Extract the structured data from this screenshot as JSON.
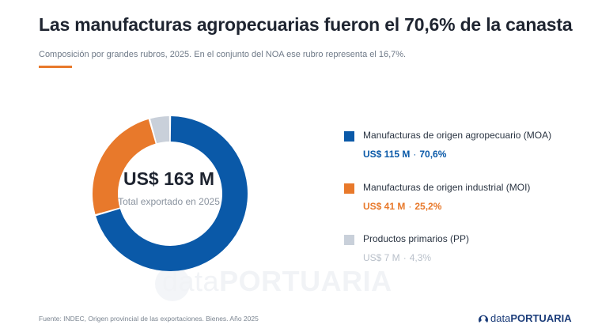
{
  "header": {
    "title": "Las manufacturas agropecuarias fueron el 70,6% de la canasta",
    "subtitle": "Composición por grandes rubros, 2025. En el conjunto del NOA ese rubro representa el 16,7%."
  },
  "chart_data": {
    "type": "pie",
    "center_value": "US$ 163 M",
    "center_label": "Total exportado en 2025",
    "slices": [
      {
        "name": "Manufacturas de origen agropecuario (MOA)",
        "value_label": "US$ 115 M",
        "pct_label": "70,6%",
        "value": 115,
        "percent": 70.6,
        "color": "#0a59a8"
      },
      {
        "name": "Manufacturas de origen industrial (MOI)",
        "value_label": "US$ 41 M",
        "pct_label": "25,2%",
        "value": 41,
        "percent": 25.2,
        "color": "#e8792b"
      },
      {
        "name": "Productos primarios (PP)",
        "value_label": "US$ 7 M",
        "pct_label": "4,3%",
        "value": 7,
        "percent": 4.3,
        "color": "#c9d0da"
      }
    ],
    "legend_position": "right"
  },
  "footer": {
    "source": "Fuente: INDEC, Origen provincial de las exportaciones. Bienes. Año 2025",
    "logo_part1": "data",
    "logo_part2": "PORTUARIA"
  },
  "watermark": {
    "part1": "data",
    "part2": "PORTUARIA"
  },
  "colors": {
    "value_text_pp": "#b9c0ca"
  }
}
